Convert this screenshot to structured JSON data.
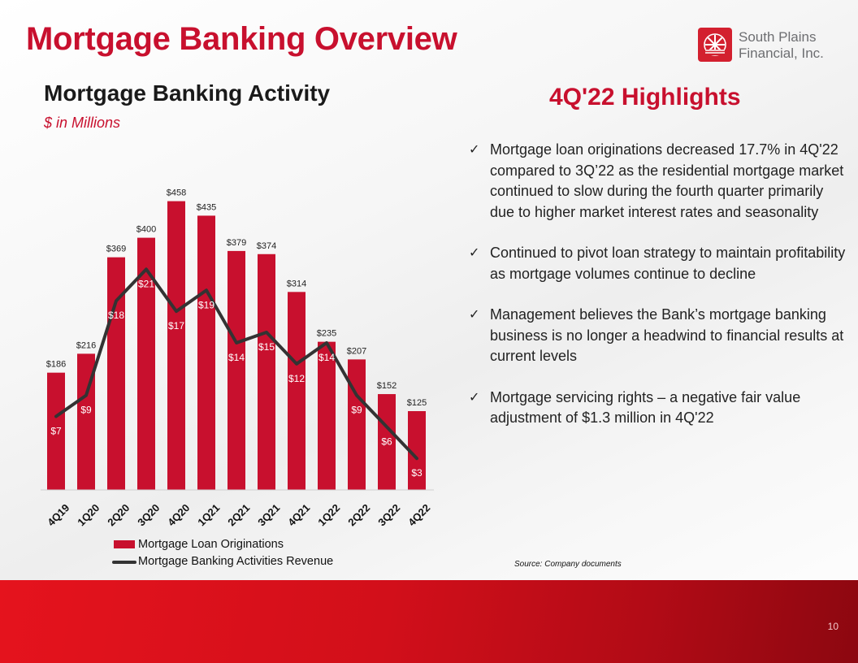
{
  "slide": {
    "title": "Mortgage Banking Overview",
    "page_number": "10",
    "source_note": "Source: Company documents"
  },
  "logo": {
    "line1": "South Plains",
    "line2": "Financial, Inc.",
    "icon": "sunburst-emblem-icon"
  },
  "chart_header": {
    "title": "Mortgage Banking Activity",
    "subtitle": "$ in Millions"
  },
  "highlights": {
    "title": "4Q'22 Highlights",
    "bullet_icon": "checkmark-icon",
    "items": [
      "Mortgage loan originations decreased 17.7% in 4Q'22 compared to 3Q’22 as the residential mortgage market continued to slow during the fourth quarter primarily due to higher market interest rates and seasonality",
      "Continued to pivot loan strategy to maintain profitability as mortgage volumes continue to decline",
      "Management believes the Bank’s mortgage banking business is no longer a headwind to financial results at current levels",
      "Mortgage servicing rights – a negative fair value adjustment of $1.3 million in 4Q'22"
    ]
  },
  "colors": {
    "accent": "#c8102e",
    "bar": "#c8102e",
    "line": "#333333",
    "footer": "#d20f1a"
  },
  "chart_data": {
    "type": "bar",
    "title": "Mortgage Banking Activity",
    "subtitle": "$ in Millions",
    "categories": [
      "4Q19",
      "1Q20",
      "2Q20",
      "3Q20",
      "4Q20",
      "1Q21",
      "2Q21",
      "3Q21",
      "4Q21",
      "1Q22",
      "2Q22",
      "3Q22",
      "4Q22"
    ],
    "series": [
      {
        "name": "Mortgage Loan Originations",
        "type": "bar",
        "axis": "left",
        "values": [
          186,
          216,
          369,
          400,
          458,
          435,
          379,
          374,
          314,
          235,
          207,
          152,
          125
        ],
        "labels": [
          "$186",
          "$216",
          "$369",
          "$400",
          "$458",
          "$435",
          "$379",
          "$374",
          "$314",
          "$235",
          "$207",
          "$152",
          "$125"
        ]
      },
      {
        "name": "Mortgage Banking Activities Revenue",
        "type": "line",
        "axis": "right",
        "values": [
          7,
          9,
          18,
          21,
          17,
          19,
          14,
          15,
          12,
          14,
          9,
          6,
          3
        ],
        "labels": [
          "$7",
          "$9",
          "$18",
          "$21",
          "$17",
          "$19",
          "$14",
          "$15",
          "$12",
          "$14",
          "$9",
          "$6",
          "$3"
        ]
      }
    ],
    "ylim_left": [
      0,
      500
    ],
    "ylim_right": [
      0,
      30
    ],
    "grid": false,
    "legend_position": "bottom-left"
  }
}
